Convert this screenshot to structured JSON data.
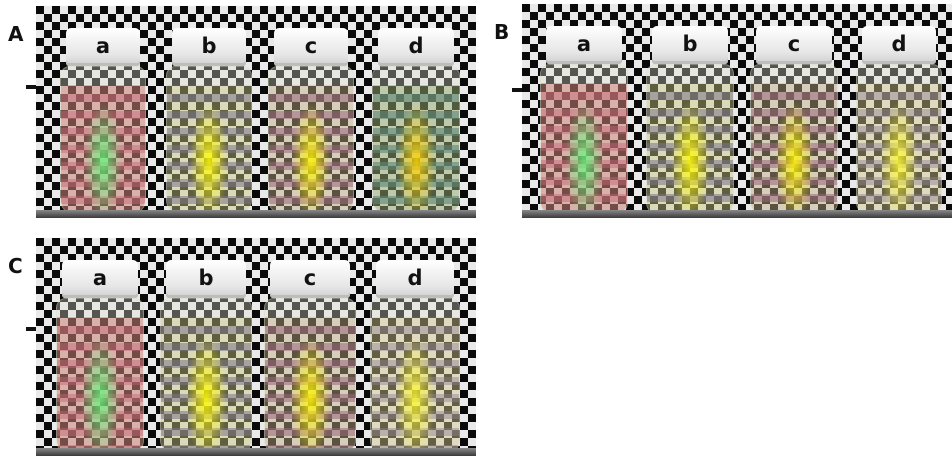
{
  "panels": [
    {
      "letter": "A",
      "vials": [
        {
          "label": "a"
        },
        {
          "label": "b"
        },
        {
          "label": "c"
        },
        {
          "label": "d"
        }
      ]
    },
    {
      "letter": "B",
      "vials": [
        {
          "label": "a"
        },
        {
          "label": "b"
        },
        {
          "label": "c"
        },
        {
          "label": "d"
        }
      ]
    },
    {
      "letter": "C",
      "vials": [
        {
          "label": "a"
        },
        {
          "label": "b"
        },
        {
          "label": "c"
        },
        {
          "label": "d"
        }
      ]
    }
  ]
}
